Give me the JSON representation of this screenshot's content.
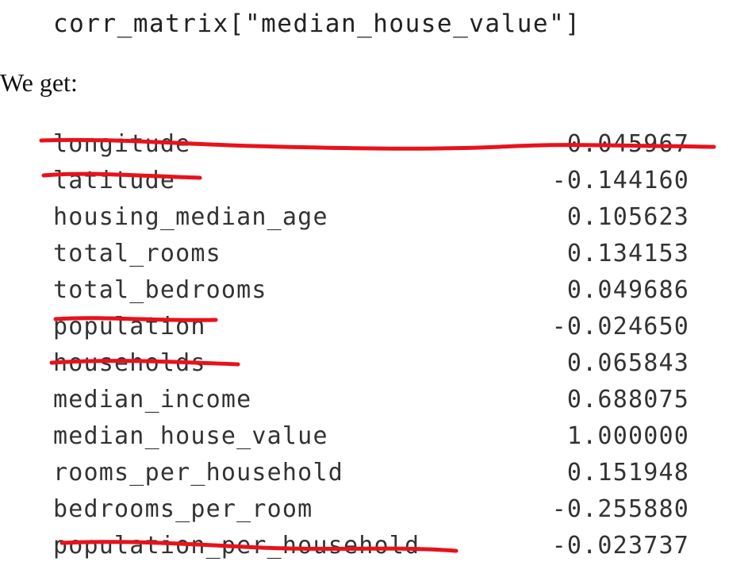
{
  "code": "corr_matrix[\"median_house_value\"]",
  "intro": "We get:",
  "rows": [
    {
      "name": "longitude",
      "value": "-0.045967",
      "struck": true
    },
    {
      "name": "latitude",
      "value": "-0.144160",
      "struck": true
    },
    {
      "name": "housing_median_age",
      "value": "0.105623",
      "struck": false
    },
    {
      "name": "total_rooms",
      "value": "0.134153",
      "struck": false
    },
    {
      "name": "total_bedrooms",
      "value": "0.049686",
      "struck": false
    },
    {
      "name": "population",
      "value": "-0.024650",
      "struck": true
    },
    {
      "name": "households",
      "value": "0.065843",
      "struck": true
    },
    {
      "name": "median_income",
      "value": "0.688075",
      "struck": false
    },
    {
      "name": "median_house_value",
      "value": "1.000000",
      "struck": false
    },
    {
      "name": "rooms_per_household",
      "value": "0.151948",
      "struck": false
    },
    {
      "name": "bedrooms_per_room",
      "value": "-0.255880",
      "struck": false
    },
    {
      "name": "population_per_household",
      "value": "-0.023737",
      "struck": true
    }
  ],
  "colors": {
    "strike": "#e8121b",
    "text": "#333333"
  }
}
